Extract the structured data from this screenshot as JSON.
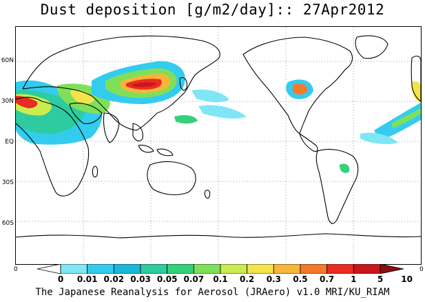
{
  "title": "Dust deposition [g/m2/day]:: 27Apr2012",
  "footer": "The Japanese Reanalysis for Aerosol (JRAero) v1.0 MRI/KU_RIAM",
  "lat_labels": [
    "60N",
    "30N",
    "EQ",
    "30S",
    "60S"
  ],
  "corner_labels": {
    "left": "0",
    "right": "0"
  },
  "colorbar": {
    "labels": [
      "0",
      "0.01",
      "0.02",
      "0.03",
      "0.05",
      "0.07",
      "0.1",
      "0.2",
      "0.3",
      "0.5",
      "0.7",
      "1",
      "5",
      "10"
    ],
    "colors": [
      "#ffffff",
      "#7fe6f5",
      "#33ccee",
      "#1ab8d8",
      "#2ecba0",
      "#35d17a",
      "#7ee05a",
      "#c9ec4f",
      "#f2e44a",
      "#f7b53a",
      "#f47a2b",
      "#ea2b22",
      "#c8161b",
      "#8a0f0f"
    ]
  }
}
